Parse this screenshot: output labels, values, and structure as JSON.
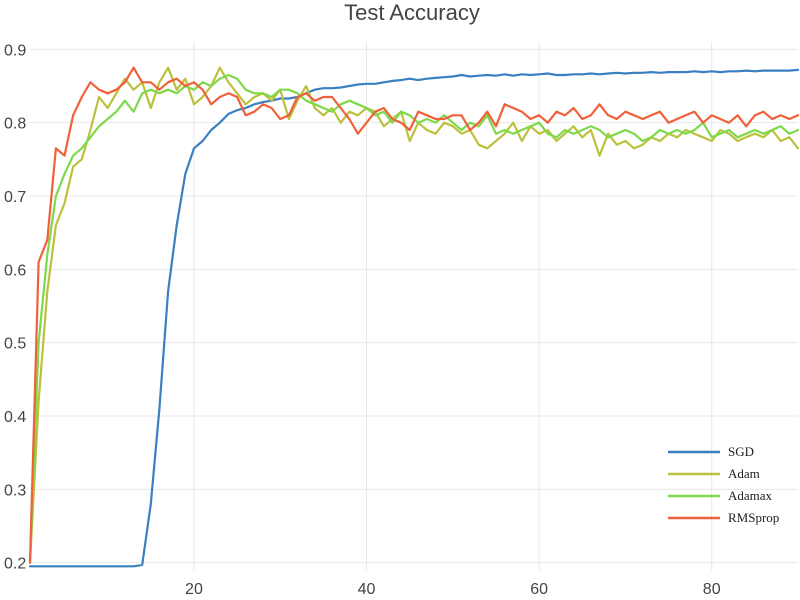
{
  "chart_data": {
    "type": "line",
    "title": "Test Accuracy",
    "xlabel": "",
    "ylabel": "",
    "xlim": [
      1,
      90
    ],
    "ylim": [
      0.19,
      0.91
    ],
    "x_ticks": [
      20,
      40,
      60,
      80
    ],
    "y_ticks": [
      0.2,
      0.3,
      0.4,
      0.5,
      0.6,
      0.7,
      0.8,
      0.9
    ],
    "grid": true,
    "legend": "bottom-right",
    "series": [
      {
        "name": "SGD",
        "color": "#3a7fc1",
        "x": [
          1,
          2,
          3,
          4,
          5,
          6,
          7,
          8,
          9,
          10,
          11,
          12,
          13,
          14,
          15,
          16,
          17,
          18,
          19,
          20,
          21,
          22,
          23,
          24,
          25,
          26,
          27,
          28,
          29,
          30,
          31,
          32,
          33,
          34,
          35,
          36,
          37,
          38,
          39,
          40,
          41,
          42,
          43,
          44,
          45,
          46,
          47,
          48,
          49,
          50,
          51,
          52,
          53,
          54,
          55,
          56,
          57,
          58,
          59,
          60,
          61,
          62,
          63,
          64,
          65,
          66,
          67,
          68,
          69,
          70,
          71,
          72,
          73,
          74,
          75,
          76,
          77,
          78,
          79,
          80,
          81,
          82,
          83,
          84,
          85,
          86,
          87,
          88,
          89,
          90
        ],
        "values": [
          0.195,
          0.195,
          0.195,
          0.195,
          0.195,
          0.195,
          0.195,
          0.195,
          0.195,
          0.195,
          0.195,
          0.195,
          0.195,
          0.197,
          0.28,
          0.41,
          0.57,
          0.66,
          0.73,
          0.765,
          0.775,
          0.79,
          0.8,
          0.812,
          0.817,
          0.82,
          0.825,
          0.828,
          0.83,
          0.833,
          0.833,
          0.835,
          0.84,
          0.845,
          0.847,
          0.847,
          0.848,
          0.85,
          0.852,
          0.853,
          0.853,
          0.855,
          0.857,
          0.858,
          0.86,
          0.858,
          0.86,
          0.861,
          0.862,
          0.863,
          0.865,
          0.863,
          0.864,
          0.865,
          0.864,
          0.866,
          0.864,
          0.866,
          0.865,
          0.866,
          0.867,
          0.865,
          0.865,
          0.866,
          0.866,
          0.867,
          0.866,
          0.867,
          0.868,
          0.867,
          0.868,
          0.868,
          0.869,
          0.868,
          0.869,
          0.869,
          0.869,
          0.87,
          0.869,
          0.87,
          0.869,
          0.87,
          0.87,
          0.871,
          0.87,
          0.871,
          0.871,
          0.871,
          0.871,
          0.872
        ]
      },
      {
        "name": "Adam",
        "color": "#bcc13d",
        "x": [
          1,
          2,
          3,
          4,
          5,
          6,
          7,
          8,
          9,
          10,
          11,
          12,
          13,
          14,
          15,
          16,
          17,
          18,
          19,
          20,
          21,
          22,
          23,
          24,
          25,
          26,
          27,
          28,
          29,
          30,
          31,
          32,
          33,
          34,
          35,
          36,
          37,
          38,
          39,
          40,
          41,
          42,
          43,
          44,
          45,
          46,
          47,
          48,
          49,
          50,
          51,
          52,
          53,
          54,
          55,
          56,
          57,
          58,
          59,
          60,
          61,
          62,
          63,
          64,
          65,
          66,
          67,
          68,
          69,
          70,
          71,
          72,
          73,
          74,
          75,
          76,
          77,
          78,
          79,
          80,
          81,
          82,
          83,
          84,
          85,
          86,
          87,
          88,
          89,
          90
        ],
        "values": [
          0.2,
          0.42,
          0.57,
          0.66,
          0.69,
          0.74,
          0.75,
          0.79,
          0.835,
          0.82,
          0.84,
          0.86,
          0.845,
          0.855,
          0.82,
          0.855,
          0.875,
          0.845,
          0.86,
          0.825,
          0.835,
          0.85,
          0.875,
          0.855,
          0.84,
          0.825,
          0.835,
          0.84,
          0.83,
          0.845,
          0.805,
          0.83,
          0.85,
          0.82,
          0.81,
          0.82,
          0.8,
          0.815,
          0.81,
          0.82,
          0.815,
          0.795,
          0.805,
          0.815,
          0.775,
          0.8,
          0.79,
          0.785,
          0.8,
          0.795,
          0.785,
          0.79,
          0.77,
          0.765,
          0.775,
          0.785,
          0.8,
          0.775,
          0.795,
          0.785,
          0.79,
          0.775,
          0.785,
          0.795,
          0.78,
          0.79,
          0.755,
          0.785,
          0.77,
          0.775,
          0.765,
          0.77,
          0.78,
          0.775,
          0.785,
          0.78,
          0.79,
          0.785,
          0.78,
          0.775,
          0.79,
          0.785,
          0.775,
          0.78,
          0.785,
          0.78,
          0.79,
          0.775,
          0.78,
          0.765
        ]
      },
      {
        "name": "Adamax",
        "color": "#7dd94a",
        "x": [
          1,
          2,
          3,
          4,
          5,
          6,
          7,
          8,
          9,
          10,
          11,
          12,
          13,
          14,
          15,
          16,
          17,
          18,
          19,
          20,
          21,
          22,
          23,
          24,
          25,
          26,
          27,
          28,
          29,
          30,
          31,
          32,
          33,
          34,
          35,
          36,
          37,
          38,
          39,
          40,
          41,
          42,
          43,
          44,
          45,
          46,
          47,
          48,
          49,
          50,
          51,
          52,
          53,
          54,
          55,
          56,
          57,
          58,
          59,
          60,
          61,
          62,
          63,
          64,
          65,
          66,
          67,
          68,
          69,
          70,
          71,
          72,
          73,
          74,
          75,
          76,
          77,
          78,
          79,
          80,
          81,
          82,
          83,
          84,
          85,
          86,
          87,
          88,
          89,
          90
        ],
        "values": [
          0.2,
          0.5,
          0.62,
          0.7,
          0.73,
          0.755,
          0.765,
          0.78,
          0.795,
          0.805,
          0.815,
          0.83,
          0.815,
          0.84,
          0.845,
          0.84,
          0.845,
          0.84,
          0.85,
          0.845,
          0.855,
          0.85,
          0.86,
          0.865,
          0.86,
          0.845,
          0.84,
          0.84,
          0.835,
          0.845,
          0.845,
          0.84,
          0.83,
          0.825,
          0.82,
          0.815,
          0.825,
          0.83,
          0.825,
          0.82,
          0.81,
          0.815,
          0.8,
          0.815,
          0.81,
          0.8,
          0.805,
          0.8,
          0.81,
          0.8,
          0.79,
          0.8,
          0.795,
          0.81,
          0.785,
          0.79,
          0.785,
          0.79,
          0.795,
          0.8,
          0.785,
          0.78,
          0.79,
          0.785,
          0.79,
          0.795,
          0.79,
          0.78,
          0.785,
          0.79,
          0.785,
          0.775,
          0.78,
          0.79,
          0.785,
          0.79,
          0.785,
          0.79,
          0.8,
          0.78,
          0.785,
          0.79,
          0.78,
          0.785,
          0.79,
          0.785,
          0.79,
          0.795,
          0.785,
          0.79
        ]
      },
      {
        "name": "RMSprop",
        "color": "#f0603a",
        "x": [
          1,
          2,
          3,
          4,
          5,
          6,
          7,
          8,
          9,
          10,
          11,
          12,
          13,
          14,
          15,
          16,
          17,
          18,
          19,
          20,
          21,
          22,
          23,
          24,
          25,
          26,
          27,
          28,
          29,
          30,
          31,
          32,
          33,
          34,
          35,
          36,
          37,
          38,
          39,
          40,
          41,
          42,
          43,
          44,
          45,
          46,
          47,
          48,
          49,
          50,
          51,
          52,
          53,
          54,
          55,
          56,
          57,
          58,
          59,
          60,
          61,
          62,
          63,
          64,
          65,
          66,
          67,
          68,
          69,
          70,
          71,
          72,
          73,
          74,
          75,
          76,
          77,
          78,
          79,
          80,
          81,
          82,
          83,
          84,
          85,
          86,
          87,
          88,
          89,
          90
        ],
        "values": [
          0.2,
          0.61,
          0.64,
          0.765,
          0.755,
          0.81,
          0.835,
          0.855,
          0.845,
          0.84,
          0.845,
          0.855,
          0.875,
          0.855,
          0.855,
          0.845,
          0.855,
          0.86,
          0.85,
          0.855,
          0.845,
          0.825,
          0.835,
          0.84,
          0.835,
          0.81,
          0.815,
          0.825,
          0.82,
          0.805,
          0.81,
          0.835,
          0.84,
          0.83,
          0.835,
          0.835,
          0.82,
          0.805,
          0.785,
          0.8,
          0.815,
          0.82,
          0.805,
          0.8,
          0.79,
          0.815,
          0.81,
          0.805,
          0.805,
          0.81,
          0.81,
          0.79,
          0.8,
          0.815,
          0.795,
          0.825,
          0.82,
          0.815,
          0.805,
          0.81,
          0.8,
          0.815,
          0.81,
          0.82,
          0.805,
          0.81,
          0.825,
          0.81,
          0.805,
          0.815,
          0.81,
          0.805,
          0.81,
          0.815,
          0.8,
          0.805,
          0.81,
          0.815,
          0.8,
          0.81,
          0.805,
          0.8,
          0.81,
          0.795,
          0.81,
          0.815,
          0.805,
          0.81,
          0.805,
          0.81
        ]
      }
    ]
  }
}
